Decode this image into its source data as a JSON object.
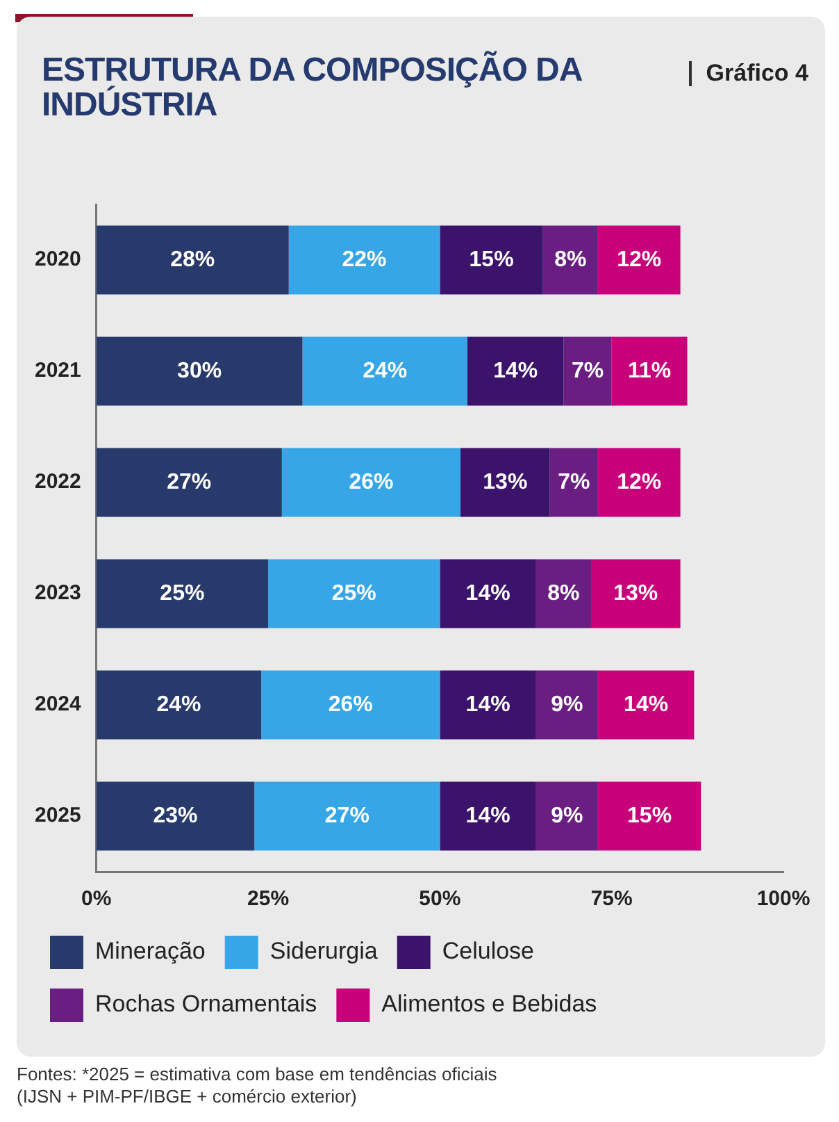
{
  "chart_data": {
    "type": "bar",
    "orientation": "horizontal",
    "stacked": true,
    "title": "ESTRUTURA DA COMPOSIÇÃO DA INDÚSTRIA",
    "subtitle": "Gráfico 4",
    "categories": [
      "2020",
      "2021",
      "2022",
      "2023",
      "2024",
      "2025"
    ],
    "series": [
      {
        "name": "Mineração",
        "color": "#283a6b",
        "values": [
          28,
          30,
          27,
          25,
          24,
          23
        ],
        "value_labels": [
          "28%",
          "30%",
          "27%",
          "25%",
          "24%",
          "23%"
        ]
      },
      {
        "name": "Siderurgia",
        "color": "#36a6e6",
        "values": [
          22,
          24,
          26,
          25,
          26,
          27
        ],
        "value_labels": [
          "22%",
          "24%",
          "26%",
          "25%",
          "26%",
          "27%"
        ]
      },
      {
        "name": "Celulose",
        "color": "#3c136a",
        "values": [
          15,
          14,
          13,
          14,
          14,
          14
        ],
        "value_labels": [
          "15%",
          "14%",
          "13%",
          "14%",
          "14%",
          "14%"
        ]
      },
      {
        "name": "Rochas Ornamentais",
        "color": "#6b1e82",
        "values": [
          8,
          7,
          7,
          8,
          9,
          9
        ],
        "value_labels": [
          "8%",
          "7%",
          "7%",
          "8%",
          "9%",
          "9%"
        ]
      },
      {
        "name": "Alimentos e Bebidas",
        "color": "#c8007a",
        "values": [
          12,
          11,
          12,
          13,
          14,
          15
        ],
        "value_labels": [
          "12%",
          "11%",
          "12%",
          "13%",
          "14%",
          "15%"
        ]
      }
    ],
    "xlim": [
      0,
      100
    ],
    "xticks": [
      {
        "value": 0,
        "label": "0%"
      },
      {
        "value": 25,
        "label": "25%"
      },
      {
        "value": 50,
        "label": "50%"
      },
      {
        "value": 75,
        "label": "75%"
      },
      {
        "value": 100,
        "label": "100%"
      }
    ],
    "grid": false,
    "legend": "bottom",
    "annotations": [
      "Fontes: *2025 = estimativa com base em tendências oficiais",
      "(IJSN + PIM-PF/IBGE + comércio exterior)"
    ]
  }
}
